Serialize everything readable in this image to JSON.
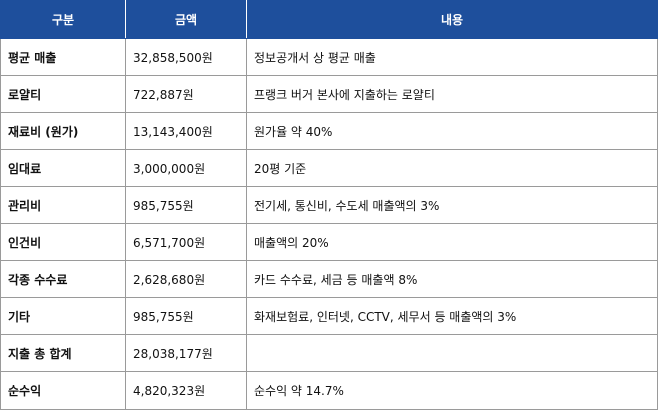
{
  "table": {
    "headers": [
      "구분",
      "금액",
      "내용"
    ],
    "rows": [
      {
        "category": "평균 매출",
        "amount": "32,858,500원",
        "desc": "정보공개서 상 평균 매출"
      },
      {
        "category": "로얄티",
        "amount": "722,887원",
        "desc": "프랭크 버거 본사에 지출하는 로얄티"
      },
      {
        "category": "재료비 (원가)",
        "amount": "13,143,400원",
        "desc": "원가율 약 40%"
      },
      {
        "category": "임대료",
        "amount": "3,000,000원",
        "desc": "20평 기준"
      },
      {
        "category": "관리비",
        "amount": "985,755원",
        "desc": "전기세, 통신비, 수도세 매출액의 3%"
      },
      {
        "category": "인건비",
        "amount": "6,571,700원",
        "desc": "매출액의 20%"
      },
      {
        "category": "각종 수수료",
        "amount": "2,628,680원",
        "desc": "카드 수수료, 세금 등 매출액 8%"
      },
      {
        "category": "기타",
        "amount": "985,755원",
        "desc": "화재보험료, 인터넷, CCTV, 세무서 등 매출액의 3%"
      },
      {
        "category": "지출 총 합계",
        "amount": "28,038,177원",
        "desc": ""
      },
      {
        "category": "순수익",
        "amount": "4,820,323원",
        "desc": "순수익 약 14.7%"
      }
    ]
  },
  "colors": {
    "header_bg": "#1e4f9c",
    "header_text": "#ffffff",
    "border": "#9a9a9a"
  }
}
